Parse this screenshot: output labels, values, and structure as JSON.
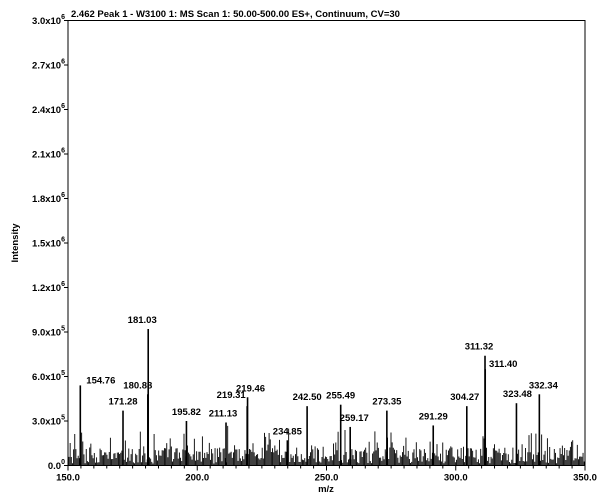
{
  "chart_data": {
    "type": "line",
    "title": "2.462 Peak 1 - W3100 1: MS Scan 1: 50.00-500.00 ES+, Continuum, CV=30",
    "xlabel": "m/z",
    "ylabel": "Intensity",
    "xlim": [
      150.0,
      350.0
    ],
    "ylim": [
      0,
      3000000
    ],
    "grid": false,
    "x_ticks": [
      {
        "value": 150,
        "label": "150.0"
      },
      {
        "value": 200,
        "label": "200.0"
      },
      {
        "value": 250,
        "label": "250.0"
      },
      {
        "value": 300,
        "label": "300.0"
      },
      {
        "value": 350,
        "label": "350.0"
      }
    ],
    "y_ticks": [
      {
        "value": 0,
        "mant": "0.0",
        "exp": "0"
      },
      {
        "value": 300000,
        "mant": "3.0x10",
        "exp": "5"
      },
      {
        "value": 600000,
        "mant": "6.0x10",
        "exp": "5"
      },
      {
        "value": 900000,
        "mant": "9.0x10",
        "exp": "5"
      },
      {
        "value": 1200000,
        "mant": "1.2x10",
        "exp": "6"
      },
      {
        "value": 1500000,
        "mant": "1.5x10",
        "exp": "6"
      },
      {
        "value": 1800000,
        "mant": "1.8x10",
        "exp": "6"
      },
      {
        "value": 2100000,
        "mant": "2.1x10",
        "exp": "6"
      },
      {
        "value": 2400000,
        "mant": "2.4x10",
        "exp": "6"
      },
      {
        "value": 2700000,
        "mant": "2.7x10",
        "exp": "6"
      },
      {
        "value": 3000000,
        "mant": "3.0x10",
        "exp": "6"
      }
    ],
    "labeled_peaks": [
      {
        "x": 154.76,
        "y": 540000,
        "label": "154.76"
      },
      {
        "x": 171.28,
        "y": 370000,
        "label": "171.28"
      },
      {
        "x": 180.88,
        "y": 480000,
        "label": "180.88"
      },
      {
        "x": 181.03,
        "y": 920000,
        "label": "181.03"
      },
      {
        "x": 195.82,
        "y": 300000,
        "label": "195.82"
      },
      {
        "x": 211.13,
        "y": 290000,
        "label": "211.13"
      },
      {
        "x": 219.31,
        "y": 400000,
        "label": "219.31"
      },
      {
        "x": 219.46,
        "y": 460000,
        "label": "219.46"
      },
      {
        "x": 234.85,
        "y": 170000,
        "label": "234.85"
      },
      {
        "x": 242.5,
        "y": 400000,
        "label": "242.50"
      },
      {
        "x": 255.49,
        "y": 410000,
        "label": "255.49"
      },
      {
        "x": 259.17,
        "y": 260000,
        "label": "259.17"
      },
      {
        "x": 273.35,
        "y": 370000,
        "label": "273.35"
      },
      {
        "x": 291.29,
        "y": 270000,
        "label": "291.29"
      },
      {
        "x": 304.27,
        "y": 400000,
        "label": "304.27"
      },
      {
        "x": 311.32,
        "y": 740000,
        "label": "311.32"
      },
      {
        "x": 311.4,
        "y": 650000,
        "label": "311.40"
      },
      {
        "x": 323.48,
        "y": 420000,
        "label": "323.48"
      },
      {
        "x": 332.34,
        "y": 480000,
        "label": "332.34"
      }
    ]
  }
}
